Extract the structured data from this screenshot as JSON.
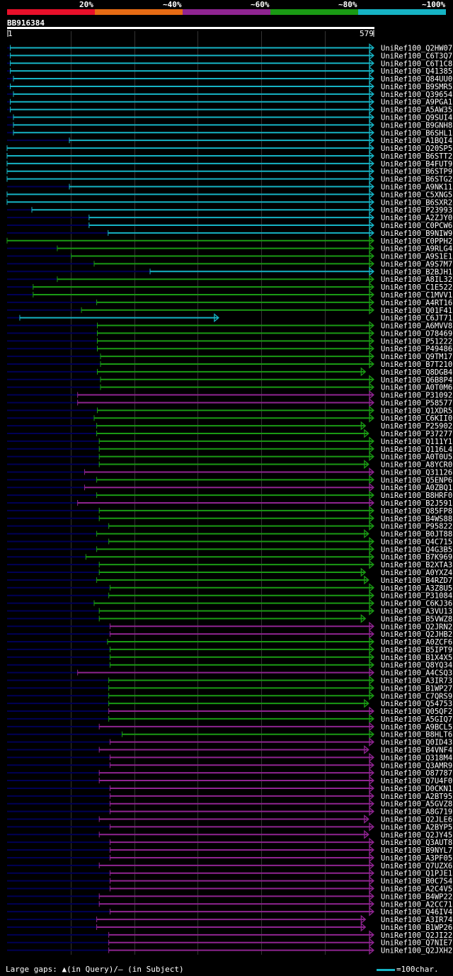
{
  "legend": {
    "segments": [
      {
        "label": "",
        "color": "#e8102a"
      },
      {
        "label": "20%",
        "color": "#e66b14"
      },
      {
        "label": "~40%",
        "color": "#8f2491"
      },
      {
        "label": "~60%",
        "color": "#1a9a14"
      },
      {
        "label": "~80%",
        "color": "#16b3c4"
      }
    ],
    "end_label": "~100%"
  },
  "query": {
    "id": "BB916384",
    "start": "1",
    "end": "579"
  },
  "footer": {
    "gaps_text": "Large gaps: ▲(in Query)/– (in Subject)",
    "scale_label": "=100char."
  },
  "colors": {
    "dark": "#000055",
    "cyan": "#16b3c4",
    "green": "#1a9a14",
    "purple": "#8f2491",
    "grid": "#333333",
    "gapmark": "#f2f2a8"
  },
  "chart_data": {
    "type": "alignment",
    "query_length": 579,
    "hits": [
      {
        "id": "UniRef100_Q2HW07",
        "start": 6,
        "end": 579,
        "color": "cyan"
      },
      {
        "id": "UniRef100_C6T3Q7",
        "start": 6,
        "end": 579,
        "color": "cyan"
      },
      {
        "id": "UniRef100_C6T1C8",
        "start": 6,
        "end": 579,
        "color": "cyan"
      },
      {
        "id": "UniRef100_Q41385",
        "start": 6,
        "end": 579,
        "color": "cyan"
      },
      {
        "id": "UniRef100_Q84UU0",
        "start": 11,
        "end": 579,
        "color": "cyan"
      },
      {
        "id": "UniRef100_B9SMR5",
        "start": 6,
        "end": 579,
        "color": "cyan"
      },
      {
        "id": "UniRef100_Q39654",
        "start": 11,
        "end": 579,
        "color": "cyan"
      },
      {
        "id": "UniRef100_A9PGA1",
        "start": 6,
        "end": 579,
        "color": "cyan"
      },
      {
        "id": "UniRef100_A5AW35",
        "start": 6,
        "end": 579,
        "color": "cyan"
      },
      {
        "id": "UniRef100_Q9SUI4",
        "start": 11,
        "end": 579,
        "color": "cyan"
      },
      {
        "id": "UniRef100_B9GNH8",
        "start": 11,
        "end": 579,
        "color": "cyan"
      },
      {
        "id": "UniRef100_B6SHL1",
        "start": 11,
        "end": 579,
        "color": "cyan"
      },
      {
        "id": "UniRef100_A1BQI4",
        "start": 99,
        "end": 579,
        "color": "cyan"
      },
      {
        "id": "UniRef100_Q20SP5",
        "start": 1,
        "end": 579,
        "color": "cyan"
      },
      {
        "id": "UniRef100_B6STT2",
        "start": 1,
        "end": 579,
        "color": "cyan"
      },
      {
        "id": "UniRef100_B4FUT9",
        "start": 1,
        "end": 579,
        "color": "cyan"
      },
      {
        "id": "UniRef100_B6STP9",
        "start": 1,
        "end": 579,
        "color": "cyan"
      },
      {
        "id": "UniRef100_B6STG2",
        "start": 1,
        "end": 579,
        "color": "cyan"
      },
      {
        "id": "UniRef100_A9NK11",
        "start": 99,
        "end": 579,
        "color": "cyan"
      },
      {
        "id": "UniRef100_C5XNG5",
        "start": 1,
        "end": 579,
        "color": "cyan"
      },
      {
        "id": "UniRef100_B6SXR2",
        "start": 1,
        "end": 579,
        "color": "cyan"
      },
      {
        "id": "UniRef100_P23993",
        "start": 40,
        "end": 579,
        "color": "cyan"
      },
      {
        "id": "UniRef100_A2ZJY0",
        "start": 130,
        "end": 579,
        "color": "cyan"
      },
      {
        "id": "UniRef100_C0PCW6",
        "start": 130,
        "end": 579,
        "color": "cyan"
      },
      {
        "id": "UniRef100_B9NIW9",
        "start": 160,
        "end": 579,
        "color": "cyan"
      },
      {
        "id": "UniRef100_C0PPH2",
        "start": 1,
        "end": 579,
        "color": "green"
      },
      {
        "id": "UniRef100_A9RLG4",
        "start": 80,
        "end": 579,
        "color": "green"
      },
      {
        "id": "UniRef100_A9S1E1",
        "start": 102,
        "end": 579,
        "color": "green"
      },
      {
        "id": "UniRef100_A9S7M7",
        "start": 138,
        "end": 579,
        "color": "green"
      },
      {
        "id": "UniRef100_B2BJH1",
        "start": 226,
        "end": 579,
        "color": "cyan"
      },
      {
        "id": "UniRef100_A8IL32",
        "start": 80,
        "end": 579,
        "color": "green"
      },
      {
        "id": "UniRef100_C1E522",
        "start": 42,
        "end": 579,
        "color": "green"
      },
      {
        "id": "UniRef100_C1MVV1",
        "start": 42,
        "end": 579,
        "color": "green"
      },
      {
        "id": "UniRef100_A4RT16",
        "start": 142,
        "end": 579,
        "color": "green"
      },
      {
        "id": "UniRef100_Q01F41",
        "start": 118,
        "end": 579,
        "color": "green"
      },
      {
        "id": "UniRef100_C6JT71",
        "start": 21,
        "end": 335,
        "color": "cyan"
      },
      {
        "id": "UniRef100_A6MVV8",
        "start": 143,
        "end": 579,
        "color": "green"
      },
      {
        "id": "UniRef100_O78469",
        "start": 143,
        "end": 579,
        "color": "green"
      },
      {
        "id": "UniRef100_P51222",
        "start": 143,
        "end": 579,
        "color": "green"
      },
      {
        "id": "UniRef100_P49486",
        "start": 143,
        "end": 579,
        "color": "green"
      },
      {
        "id": "UniRef100_Q9TM17",
        "start": 148,
        "end": 579,
        "color": "green"
      },
      {
        "id": "UniRef100_B7T210",
        "start": 148,
        "end": 579,
        "color": "green"
      },
      {
        "id": "UniRef100_Q8DGB4",
        "start": 143,
        "end": 566,
        "color": "green"
      },
      {
        "id": "UniRef100_Q6B8P4",
        "start": 148,
        "end": 579,
        "color": "green"
      },
      {
        "id": "UniRef100_A0T0M6",
        "start": 148,
        "end": 579,
        "color": "green"
      },
      {
        "id": "UniRef100_P31092",
        "start": 112,
        "end": 579,
        "color": "purple"
      },
      {
        "id": "UniRef100_P58577",
        "start": 112,
        "end": 579,
        "color": "purple"
      },
      {
        "id": "UniRef100_Q1XDR5",
        "start": 143,
        "end": 579,
        "color": "green"
      },
      {
        "id": "UniRef100_C6KII0",
        "start": 138,
        "end": 579,
        "color": "green"
      },
      {
        "id": "UniRef100_P25902",
        "start": 142,
        "end": 566,
        "color": "green"
      },
      {
        "id": "UniRef100_P37277",
        "start": 142,
        "end": 571,
        "color": "green"
      },
      {
        "id": "UniRef100_Q111Y1",
        "start": 146,
        "end": 579,
        "color": "green"
      },
      {
        "id": "UniRef100_Q116L4",
        "start": 146,
        "end": 579,
        "color": "green"
      },
      {
        "id": "UniRef100_A0T0U5",
        "start": 146,
        "end": 579,
        "color": "green"
      },
      {
        "id": "UniRef100_A8YCR0",
        "start": 146,
        "end": 571,
        "color": "green"
      },
      {
        "id": "UniRef100_Q31126",
        "start": 123,
        "end": 579,
        "color": "purple"
      },
      {
        "id": "UniRef100_Q5ENP6",
        "start": 142,
        "end": 579,
        "color": "green"
      },
      {
        "id": "UniRef100_A0ZBQ1",
        "start": 123,
        "end": 579,
        "color": "purple"
      },
      {
        "id": "UniRef100_B8HRF0",
        "start": 142,
        "end": 579,
        "color": "green"
      },
      {
        "id": "UniRef100_B2J591",
        "start": 112,
        "end": 579,
        "color": "purple"
      },
      {
        "id": "UniRef100_Q85FP8",
        "start": 146,
        "end": 579,
        "color": "green"
      },
      {
        "id": "UniRef100_B4WS88",
        "start": 146,
        "end": 579,
        "color": "green"
      },
      {
        "id": "UniRef100_P95822",
        "start": 161,
        "end": 579,
        "color": "green"
      },
      {
        "id": "UniRef100_B0JT88",
        "start": 142,
        "end": 571,
        "color": "green"
      },
      {
        "id": "UniRef100_Q4C715",
        "start": 161,
        "end": 579,
        "color": "green"
      },
      {
        "id": "UniRef100_Q4G3B5",
        "start": 142,
        "end": 579,
        "color": "green"
      },
      {
        "id": "UniRef100_B7K969",
        "start": 125,
        "end": 579,
        "color": "green"
      },
      {
        "id": "UniRef100_B2XTA3",
        "start": 146,
        "end": 579,
        "color": "green"
      },
      {
        "id": "UniRef100_A0YXZ4",
        "start": 146,
        "end": 566,
        "color": "green"
      },
      {
        "id": "UniRef100_B4RZD7",
        "start": 142,
        "end": 571,
        "color": "green"
      },
      {
        "id": "UniRef100_A3Z8U5",
        "start": 163,
        "end": 579,
        "color": "green"
      },
      {
        "id": "UniRef100_P31084",
        "start": 161,
        "end": 579,
        "color": "green"
      },
      {
        "id": "UniRef100_C6KJ36",
        "start": 138,
        "end": 579,
        "color": "green"
      },
      {
        "id": "UniRef100_A3VU13",
        "start": 146,
        "end": 579,
        "color": "green"
      },
      {
        "id": "UniRef100_B5VWZ8",
        "start": 146,
        "end": 566,
        "color": "green"
      },
      {
        "id": "UniRef100_Q2JRN2",
        "start": 163,
        "end": 579,
        "color": "purple"
      },
      {
        "id": "UniRef100_Q2JHB2",
        "start": 163,
        "end": 579,
        "color": "purple"
      },
      {
        "id": "UniRef100_A0ZCF6",
        "start": 159,
        "end": 579,
        "color": "green"
      },
      {
        "id": "UniRef100_B5IPT9",
        "start": 163,
        "end": 579,
        "color": "green"
      },
      {
        "id": "UniRef100_B1X4X5",
        "start": 163,
        "end": 579,
        "color": "green"
      },
      {
        "id": "UniRef100_Q8YQ34",
        "start": 163,
        "end": 579,
        "color": "green"
      },
      {
        "id": "UniRef100_A4CSQ3",
        "start": 112,
        "end": 579,
        "color": "purple"
      },
      {
        "id": "UniRef100_A3IR73",
        "start": 161,
        "end": 579,
        "color": "green"
      },
      {
        "id": "UniRef100_B1WP27",
        "start": 161,
        "end": 579,
        "color": "green"
      },
      {
        "id": "UniRef100_C7QRS9",
        "start": 161,
        "end": 579,
        "color": "green"
      },
      {
        "id": "UniRef100_Q54753",
        "start": 161,
        "end": 571,
        "color": "green"
      },
      {
        "id": "UniRef100_Q05QF2",
        "start": 161,
        "end": 579,
        "color": "purple"
      },
      {
        "id": "UniRef100_A5GIQ7",
        "start": 161,
        "end": 579,
        "color": "green"
      },
      {
        "id": "UniRef100_A9BCL5",
        "start": 146,
        "end": 579,
        "color": "purple"
      },
      {
        "id": "UniRef100_B8HLT6",
        "start": 182,
        "end": 579,
        "color": "green"
      },
      {
        "id": "UniRef100_Q0ID43",
        "start": 163,
        "end": 579,
        "color": "purple"
      },
      {
        "id": "UniRef100_B4VNF4",
        "start": 146,
        "end": 571,
        "color": "purple"
      },
      {
        "id": "UniRef100_Q318M4",
        "start": 163,
        "end": 579,
        "color": "purple"
      },
      {
        "id": "UniRef100_Q3AMR9",
        "start": 163,
        "end": 579,
        "color": "purple"
      },
      {
        "id": "UniRef100_O87787",
        "start": 146,
        "end": 579,
        "color": "purple"
      },
      {
        "id": "UniRef100_Q7U4F0",
        "start": 146,
        "end": 579,
        "color": "purple"
      },
      {
        "id": "UniRef100_D0CKN1",
        "start": 163,
        "end": 579,
        "color": "purple"
      },
      {
        "id": "UniRef100_A2BT95",
        "start": 163,
        "end": 579,
        "color": "purple"
      },
      {
        "id": "UniRef100_A5GVZ8",
        "start": 163,
        "end": 579,
        "color": "purple"
      },
      {
        "id": "UniRef100_A8G719",
        "start": 163,
        "end": 579,
        "color": "purple"
      },
      {
        "id": "UniRef100_Q2JLE6",
        "start": 146,
        "end": 571,
        "color": "purple"
      },
      {
        "id": "UniRef100_A2BYP5",
        "start": 163,
        "end": 579,
        "color": "purple"
      },
      {
        "id": "UniRef100_Q2JY45",
        "start": 146,
        "end": 571,
        "color": "purple"
      },
      {
        "id": "UniRef100_Q3AUT8",
        "start": 163,
        "end": 579,
        "color": "purple"
      },
      {
        "id": "UniRef100_B9NYL7",
        "start": 163,
        "end": 579,
        "color": "purple"
      },
      {
        "id": "UniRef100_A3PF05",
        "start": 163,
        "end": 579,
        "color": "purple"
      },
      {
        "id": "UniRef100_Q7UZX6",
        "start": 146,
        "end": 579,
        "color": "purple"
      },
      {
        "id": "UniRef100_Q1PJE1",
        "start": 163,
        "end": 579,
        "color": "purple"
      },
      {
        "id": "UniRef100_B0C7S4",
        "start": 163,
        "end": 579,
        "color": "purple"
      },
      {
        "id": "UniRef100_A2C4V5",
        "start": 163,
        "end": 579,
        "color": "purple"
      },
      {
        "id": "UniRef100_B4WP22",
        "start": 146,
        "end": 579,
        "color": "purple"
      },
      {
        "id": "UniRef100_A2CC71",
        "start": 146,
        "end": 579,
        "color": "purple"
      },
      {
        "id": "UniRef100_Q46IV4",
        "start": 163,
        "end": 579,
        "color": "purple"
      },
      {
        "id": "UniRef100_A3IR74",
        "start": 142,
        "end": 566,
        "color": "purple"
      },
      {
        "id": "UniRef100_B1WP26",
        "start": 142,
        "end": 566,
        "color": "purple"
      },
      {
        "id": "UniRef100_Q2JI22",
        "start": 161,
        "end": 579,
        "color": "purple"
      },
      {
        "id": "UniRef100_Q7NIE7",
        "start": 161,
        "end": 579,
        "color": "purple"
      },
      {
        "id": "UniRef100_Q2JXH2",
        "start": 161,
        "end": 579,
        "color": "purple"
      }
    ]
  }
}
